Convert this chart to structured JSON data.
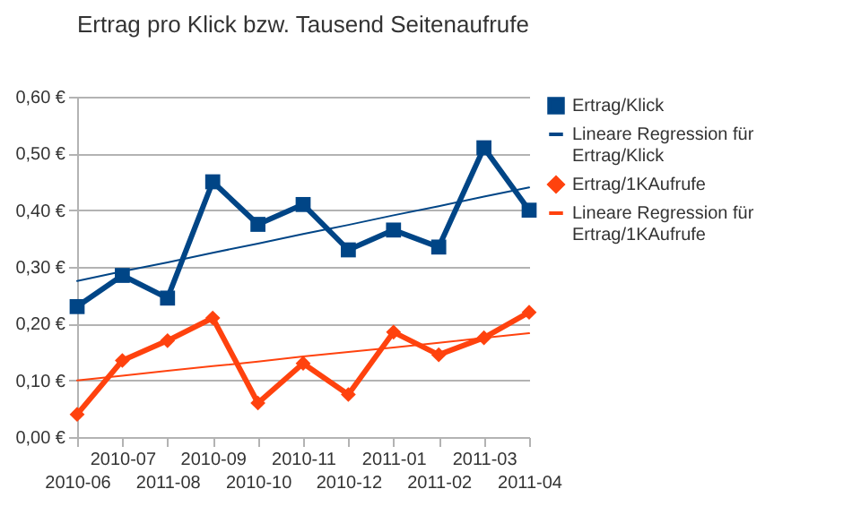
{
  "chart_data": {
    "type": "line",
    "title": "Ertrag pro Klick bzw. Tausend Seitenaufrufe",
    "categories": [
      "2010-06",
      "2010-07",
      "2011-08",
      "2010-09",
      "2010-10",
      "2010-11",
      "2010-12",
      "2011-01",
      "2011-02",
      "2011-03",
      "2011-04"
    ],
    "series": [
      {
        "name": "Ertrag/Klick",
        "color": "#004586",
        "marker": "square",
        "values": [
          0.23,
          0.285,
          0.245,
          0.45,
          0.375,
          0.41,
          0.33,
          0.365,
          0.335,
          0.51,
          0.4
        ]
      },
      {
        "name": "Lineare Regression für Ertrag/Klick",
        "color": "#004586",
        "type": "line",
        "marker": "none",
        "values": [
          0.275,
          0.292,
          0.308,
          0.325,
          0.341,
          0.358,
          0.374,
          0.391,
          0.407,
          0.424,
          0.44
        ]
      },
      {
        "name": "Ertrag/1KAufrufe",
        "color": "#ff420e",
        "marker": "diamond",
        "values": [
          0.04,
          0.135,
          0.17,
          0.21,
          0.06,
          0.13,
          0.075,
          0.185,
          0.145,
          0.175,
          0.22
        ]
      },
      {
        "name": "Lineare Regression für Ertrag/1KAufrufe",
        "color": "#ff420e",
        "type": "line",
        "marker": "none",
        "values": [
          0.1,
          0.108,
          0.117,
          0.125,
          0.133,
          0.142,
          0.15,
          0.158,
          0.166,
          0.175,
          0.183
        ]
      }
    ],
    "ylim": [
      0,
      0.6
    ],
    "yticks": [
      {
        "value": 0,
        "label": "0,00 €"
      },
      {
        "value": 0.1,
        "label": "0,10 €"
      },
      {
        "value": 0.2,
        "label": "0,20 €"
      },
      {
        "value": 0.3,
        "label": "0,30 €"
      },
      {
        "value": 0.4,
        "label": "0,40 €"
      },
      {
        "value": 0.5,
        "label": "0,50 €"
      },
      {
        "value": 0.6,
        "label": "0,60 €"
      }
    ],
    "grid": "y",
    "legend": "right"
  }
}
